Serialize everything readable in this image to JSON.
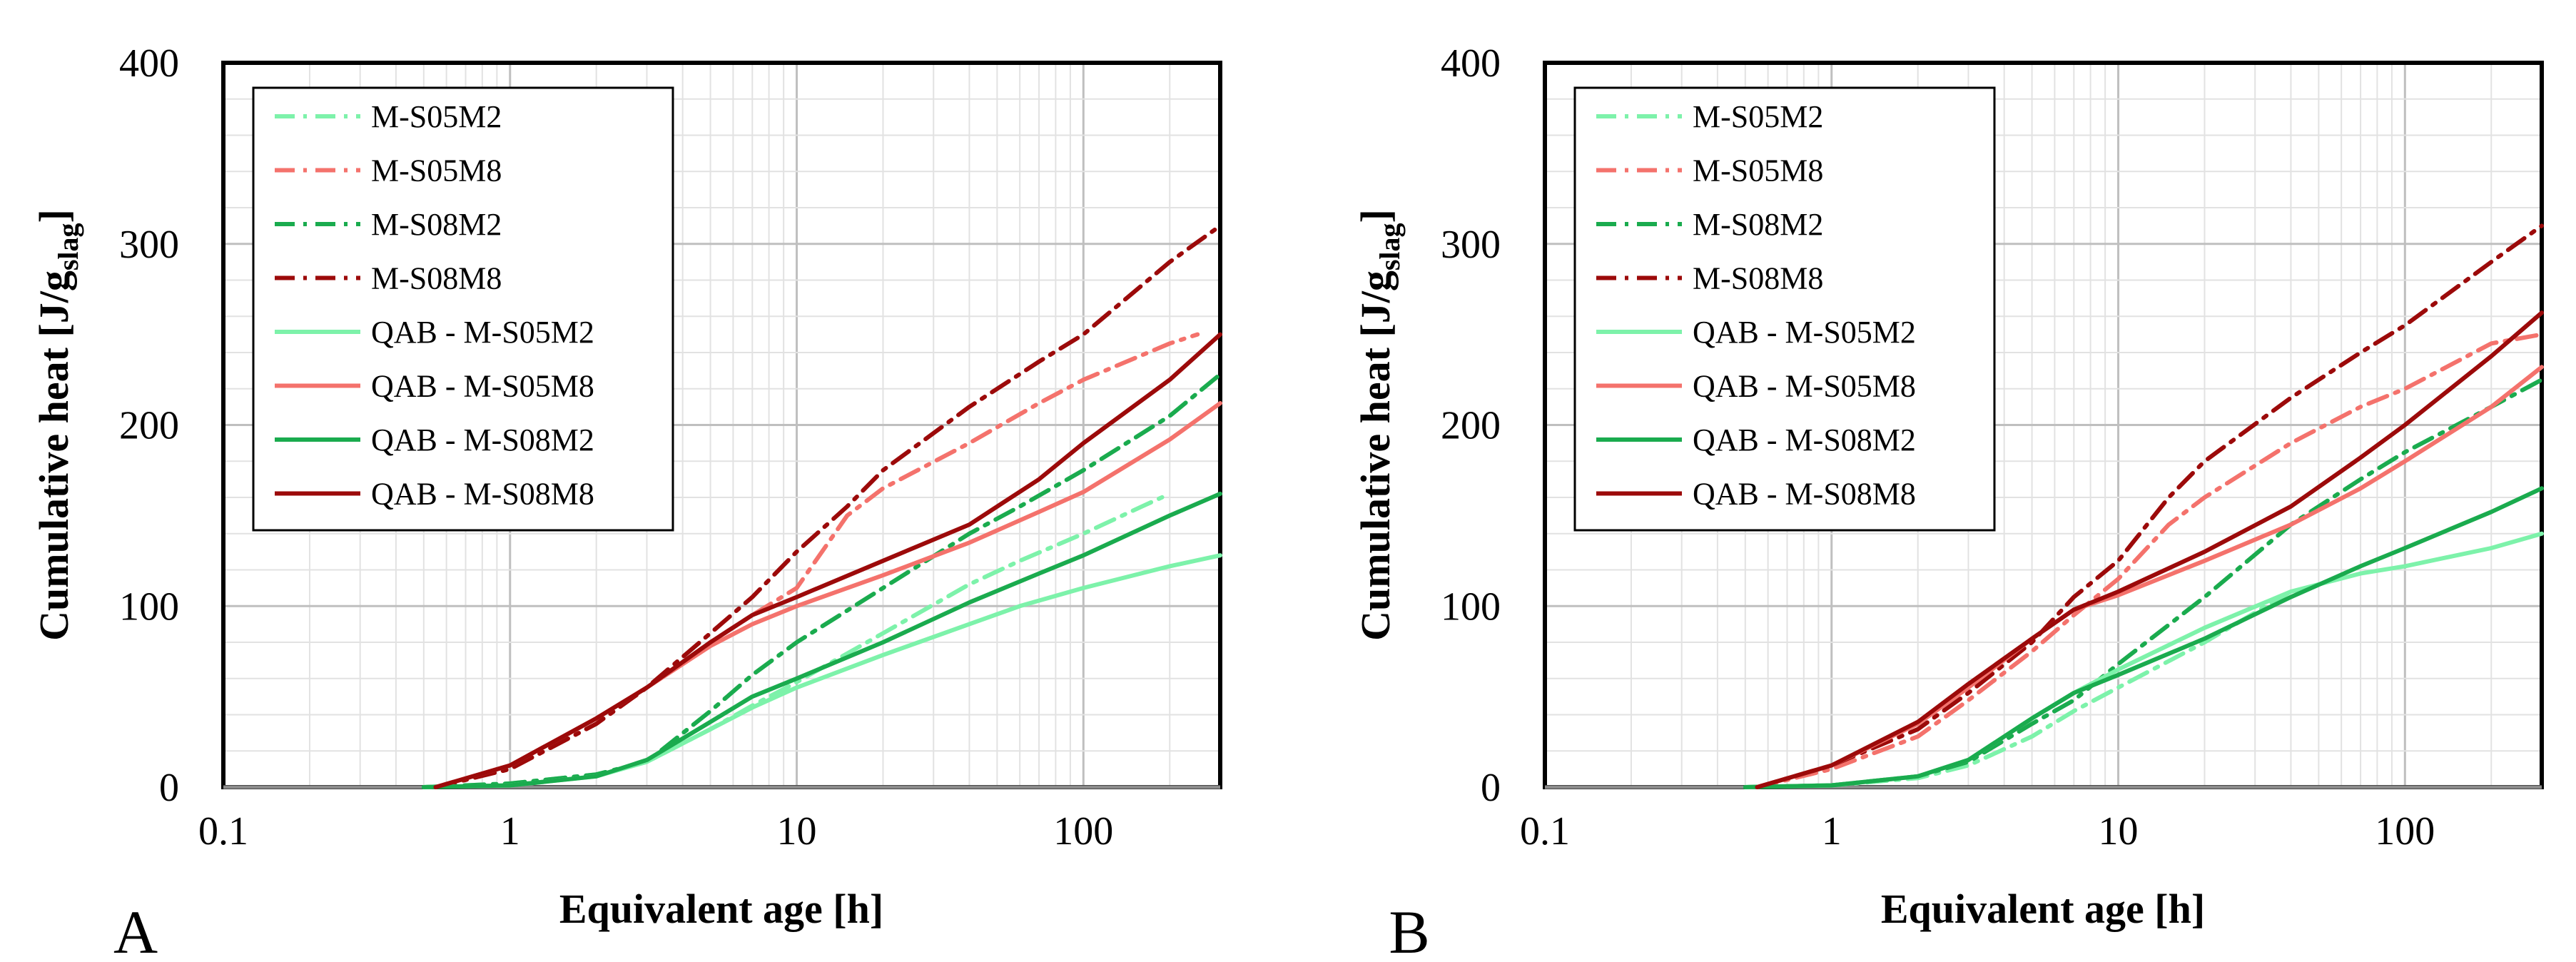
{
  "colors": {
    "M-S05M2": "#7df2aa",
    "M-S05M8": "#f4726c",
    "M-S08M2": "#1aab4e",
    "M-S08M8": "#9c0a0a"
  },
  "chart_data": [
    {
      "type": "line",
      "panel_label": "A",
      "xlabel": "Equivalent age [h]",
      "ylabel": "Cumulative heat [J/g",
      "ylabel_sub": "slag",
      "ylabel_end": "]",
      "xscale": "log",
      "xlim": [
        0.1,
        300
      ],
      "ylim": [
        0,
        400
      ],
      "xticks": [
        0.1,
        1,
        10,
        100
      ],
      "xtick_labels": [
        "0.1",
        "1",
        "10",
        "100"
      ],
      "yticks": [
        0,
        100,
        200,
        300,
        400
      ],
      "ytick_labels": [
        "0",
        "100",
        "200",
        "300",
        "400"
      ],
      "grid": true,
      "legend_position": "top-left",
      "series": [
        {
          "name": "M-S05M2",
          "style": "dashdot",
          "color_key": "M-S05M2",
          "x": [
            0.5,
            1,
            2,
            3,
            5,
            7,
            10,
            20,
            40,
            60,
            100,
            160,
            200
          ],
          "y": [
            0,
            2,
            7,
            14,
            32,
            45,
            58,
            85,
            112,
            125,
            140,
            155,
            162
          ]
        },
        {
          "name": "M-S05M8",
          "style": "dashdot",
          "color_key": "M-S05M8",
          "x": [
            0.55,
            1,
            2,
            3,
            5,
            7,
            10,
            15,
            20,
            40,
            70,
            100,
            200,
            250
          ],
          "y": [
            0,
            10,
            35,
            55,
            80,
            95,
            110,
            150,
            165,
            190,
            212,
            225,
            245,
            250
          ]
        },
        {
          "name": "M-S08M2",
          "style": "dashdot",
          "color_key": "M-S08M2",
          "x": [
            0.5,
            1,
            2,
            3,
            5,
            7,
            10,
            20,
            40,
            60,
            100,
            200,
            300
          ],
          "y": [
            0,
            2,
            7,
            14,
            42,
            62,
            80,
            110,
            140,
            155,
            175,
            205,
            228
          ]
        },
        {
          "name": "M-S08M8",
          "style": "dashdot",
          "color_key": "M-S08M8",
          "x": [
            0.55,
            1,
            2,
            3,
            5,
            7,
            10,
            15,
            20,
            40,
            70,
            100,
            200,
            300
          ],
          "y": [
            0,
            10,
            35,
            55,
            85,
            105,
            130,
            155,
            175,
            210,
            235,
            250,
            290,
            310
          ]
        },
        {
          "name": "QAB - M-S05M2",
          "style": "solid",
          "color_key": "M-S05M2",
          "x": [
            0.5,
            1,
            2,
            3,
            5,
            7,
            10,
            20,
            40,
            60,
            100,
            200,
            300
          ],
          "y": [
            0,
            1,
            6,
            14,
            32,
            44,
            55,
            73,
            90,
            100,
            110,
            122,
            128
          ]
        },
        {
          "name": "QAB - M-S05M8",
          "style": "solid",
          "color_key": "M-S05M8",
          "x": [
            0.55,
            1,
            2,
            3,
            5,
            7,
            10,
            20,
            40,
            70,
            100,
            200,
            300
          ],
          "y": [
            0,
            12,
            38,
            55,
            78,
            90,
            100,
            117,
            135,
            152,
            163,
            192,
            212
          ]
        },
        {
          "name": "QAB - M-S08M2",
          "style": "solid",
          "color_key": "M-S08M2",
          "x": [
            0.5,
            1,
            2,
            3,
            5,
            7,
            10,
            20,
            40,
            70,
            100,
            200,
            300
          ],
          "y": [
            0,
            1,
            6,
            15,
            36,
            50,
            60,
            80,
            102,
            118,
            128,
            150,
            162
          ]
        },
        {
          "name": "QAB - M-S08M8",
          "style": "solid",
          "color_key": "M-S08M8",
          "x": [
            0.55,
            1,
            2,
            3,
            5,
            7,
            10,
            20,
            40,
            70,
            100,
            200,
            300
          ],
          "y": [
            0,
            12,
            38,
            55,
            80,
            95,
            105,
            125,
            145,
            170,
            190,
            225,
            250
          ]
        }
      ]
    },
    {
      "type": "line",
      "panel_label": "B",
      "xlabel": "Equivalent age [h]",
      "ylabel": "Cumulative heat [J/g",
      "ylabel_sub": "slag",
      "ylabel_end": "]",
      "xscale": "log",
      "xlim": [
        0.1,
        300
      ],
      "ylim": [
        0,
        400
      ],
      "xticks": [
        0.1,
        1,
        10,
        100
      ],
      "xtick_labels": [
        "0.1",
        "1",
        "10",
        "100"
      ],
      "yticks": [
        0,
        100,
        200,
        300,
        400
      ],
      "ytick_labels": [
        "0",
        "100",
        "200",
        "300",
        "400"
      ],
      "grid": true,
      "legend_position": "top-left",
      "series": [
        {
          "name": "M-S05M2",
          "style": "dashdot",
          "color_key": "M-S05M2",
          "x": [
            0.5,
            1,
            2,
            3,
            5,
            7,
            10,
            20,
            40
          ],
          "y": [
            0,
            1,
            5,
            12,
            28,
            42,
            55,
            80,
            108
          ]
        },
        {
          "name": "M-S05M8",
          "style": "dashdot",
          "color_key": "M-S05M8",
          "x": [
            0.55,
            1,
            2,
            3,
            5,
            7,
            10,
            15,
            20,
            40,
            70,
            100,
            200,
            300
          ],
          "y": [
            0,
            10,
            28,
            48,
            75,
            95,
            115,
            145,
            160,
            190,
            210,
            220,
            245,
            250
          ]
        },
        {
          "name": "M-S08M2",
          "style": "dashdot",
          "color_key": "M-S08M2",
          "x": [
            0.5,
            1,
            2,
            3,
            5,
            7,
            10,
            20,
            40,
            70,
            100,
            200,
            300
          ],
          "y": [
            0,
            1,
            6,
            14,
            35,
            48,
            68,
            105,
            145,
            170,
            185,
            210,
            225
          ]
        },
        {
          "name": "M-S08M8",
          "style": "dashdot",
          "color_key": "M-S08M8",
          "x": [
            0.55,
            1,
            2,
            3,
            5,
            7,
            10,
            15,
            20,
            40,
            70,
            100,
            200,
            300
          ],
          "y": [
            0,
            12,
            32,
            52,
            80,
            105,
            125,
            160,
            180,
            215,
            240,
            255,
            290,
            310
          ]
        },
        {
          "name": "QAB - M-S05M2",
          "style": "solid",
          "color_key": "M-S05M2",
          "x": [
            0.5,
            1,
            2,
            3,
            5,
            7,
            10,
            20,
            40,
            70,
            100,
            200,
            300
          ],
          "y": [
            0,
            1,
            6,
            15,
            38,
            52,
            65,
            88,
            108,
            118,
            122,
            132,
            140
          ]
        },
        {
          "name": "QAB - M-S05M8",
          "style": "solid",
          "color_key": "M-S05M8",
          "x": [
            0.55,
            1,
            2,
            3,
            5,
            7,
            10,
            20,
            40,
            70,
            100,
            200,
            300
          ],
          "y": [
            0,
            12,
            35,
            55,
            82,
            98,
            106,
            125,
            145,
            165,
            180,
            210,
            232
          ]
        },
        {
          "name": "QAB - M-S08M2",
          "style": "solid",
          "color_key": "M-S08M2",
          "x": [
            0.5,
            1,
            2,
            3,
            5,
            7,
            10,
            20,
            40,
            70,
            100,
            200,
            300
          ],
          "y": [
            0,
            1,
            6,
            15,
            38,
            52,
            62,
            82,
            105,
            122,
            132,
            152,
            165
          ]
        },
        {
          "name": "QAB - M-S08M8",
          "style": "solid",
          "color_key": "M-S08M8",
          "x": [
            0.55,
            1,
            2,
            3,
            5,
            7,
            10,
            20,
            40,
            70,
            100,
            200,
            300
          ],
          "y": [
            0,
            12,
            36,
            57,
            82,
            98,
            108,
            130,
            155,
            182,
            200,
            238,
            262
          ]
        }
      ]
    }
  ]
}
